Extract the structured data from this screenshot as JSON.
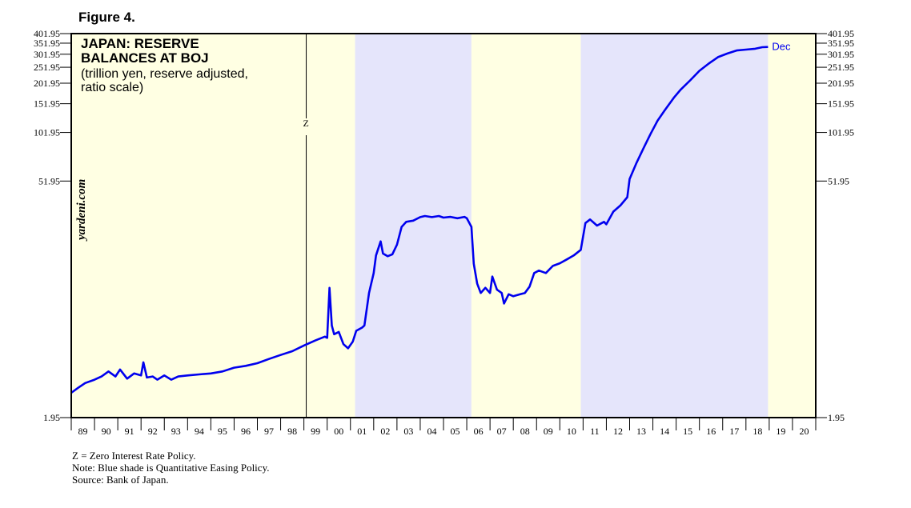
{
  "figure_label": "Figure 4.",
  "watermark": "yardeni.com",
  "notes": [
    "Z = Zero Interest Rate Policy.",
    "Note: Blue shade is Quantitative Easing Policy.",
    "Source: Bank of Japan."
  ],
  "colors": {
    "line": "#0000ee",
    "zirp": "#ffffe3",
    "qe": "#e5e5fb",
    "frame": "#000000"
  },
  "chart_data": {
    "type": "line",
    "title": "JAPAN: RESERVE BALANCES AT BOJ",
    "subtitle": "(trillion yen, reserve adjusted, ratio scale)",
    "y_scale": "log",
    "ylim": [
      1.95,
      401.95
    ],
    "yticks": [
      1.95,
      51.95,
      101.95,
      151.95,
      201.95,
      251.95,
      301.95,
      351.95,
      401.95
    ],
    "ytick_labels": [
      "1.95",
      "51.95",
      "101.95",
      "151.95",
      "201.95",
      "251.95",
      "301.95",
      "351.95",
      "401.95"
    ],
    "xlim": [
      1989.0,
      2021.0
    ],
    "x_tick_labels": [
      "89",
      "90",
      "91",
      "92",
      "93",
      "94",
      "95",
      "96",
      "97",
      "98",
      "99",
      "00",
      "01",
      "02",
      "03",
      "04",
      "05",
      "06",
      "07",
      "08",
      "09",
      "10",
      "11",
      "12",
      "13",
      "14",
      "15",
      "16",
      "17",
      "18",
      "19",
      "20"
    ],
    "annotations": [
      {
        "label": "Z",
        "x": 1999.1,
        "kind": "vertical-line"
      },
      {
        "label": "Dec",
        "x": 2018.95,
        "kind": "end-label"
      }
    ],
    "shaded_regions": [
      {
        "start": 1999.1,
        "end": 2001.2,
        "type": "zirp"
      },
      {
        "start": 2001.2,
        "end": 2006.2,
        "type": "qe"
      },
      {
        "start": 2006.2,
        "end": 2010.9,
        "type": "zirp"
      },
      {
        "start": 2010.9,
        "end": 2018.95,
        "type": "qe"
      },
      {
        "start": 2018.95,
        "end": 2021.0,
        "type": "zirp"
      },
      {
        "start": 1989.0,
        "end": 1999.1,
        "type": "zirp"
      }
    ],
    "series": [
      {
        "values": [
          [
            1989.0,
            2.75
          ],
          [
            1989.3,
            2.95
          ],
          [
            1989.6,
            3.15
          ],
          [
            1990.0,
            3.3
          ],
          [
            1990.3,
            3.45
          ],
          [
            1990.6,
            3.7
          ],
          [
            1990.9,
            3.45
          ],
          [
            1991.1,
            3.8
          ],
          [
            1991.4,
            3.35
          ],
          [
            1991.7,
            3.6
          ],
          [
            1992.0,
            3.5
          ],
          [
            1992.1,
            4.2
          ],
          [
            1992.25,
            3.4
          ],
          [
            1992.5,
            3.45
          ],
          [
            1992.7,
            3.3
          ],
          [
            1993.0,
            3.5
          ],
          [
            1993.3,
            3.3
          ],
          [
            1993.6,
            3.45
          ],
          [
            1994.0,
            3.5
          ],
          [
            1994.5,
            3.55
          ],
          [
            1995.0,
            3.6
          ],
          [
            1995.5,
            3.7
          ],
          [
            1996.0,
            3.9
          ],
          [
            1996.5,
            4.0
          ],
          [
            1997.0,
            4.15
          ],
          [
            1997.5,
            4.4
          ],
          [
            1998.0,
            4.65
          ],
          [
            1998.5,
            4.9
          ],
          [
            1999.0,
            5.3
          ],
          [
            1999.5,
            5.7
          ],
          [
            1999.9,
            6.0
          ],
          [
            2000.0,
            5.9
          ],
          [
            2000.1,
            11.8
          ],
          [
            2000.2,
            7.0
          ],
          [
            2000.3,
            6.2
          ],
          [
            2000.5,
            6.4
          ],
          [
            2000.7,
            5.4
          ],
          [
            2000.9,
            5.1
          ],
          [
            2001.1,
            5.6
          ],
          [
            2001.25,
            6.5
          ],
          [
            2001.5,
            6.8
          ],
          [
            2001.6,
            7.0
          ],
          [
            2001.8,
            11.0
          ],
          [
            2002.0,
            14.5
          ],
          [
            2002.1,
            18.5
          ],
          [
            2002.3,
            22.5
          ],
          [
            2002.4,
            19.0
          ],
          [
            2002.6,
            18.3
          ],
          [
            2002.8,
            18.8
          ],
          [
            2003.0,
            21.5
          ],
          [
            2003.2,
            27.5
          ],
          [
            2003.4,
            29.5
          ],
          [
            2003.7,
            30.0
          ],
          [
            2004.0,
            31.5
          ],
          [
            2004.2,
            32.0
          ],
          [
            2004.5,
            31.5
          ],
          [
            2004.8,
            32.0
          ],
          [
            2005.0,
            31.3
          ],
          [
            2005.3,
            31.6
          ],
          [
            2005.6,
            31.0
          ],
          [
            2005.9,
            31.6
          ],
          [
            2006.0,
            31.0
          ],
          [
            2006.2,
            27.5
          ],
          [
            2006.3,
            16.5
          ],
          [
            2006.45,
            12.5
          ],
          [
            2006.6,
            11.0
          ],
          [
            2006.8,
            11.8
          ],
          [
            2007.0,
            11.0
          ],
          [
            2007.1,
            13.8
          ],
          [
            2007.3,
            11.5
          ],
          [
            2007.5,
            11.0
          ],
          [
            2007.6,
            9.5
          ],
          [
            2007.8,
            10.8
          ],
          [
            2008.0,
            10.5
          ],
          [
            2008.3,
            10.8
          ],
          [
            2008.5,
            11.0
          ],
          [
            2008.7,
            12.0
          ],
          [
            2008.9,
            14.5
          ],
          [
            2009.1,
            15.0
          ],
          [
            2009.4,
            14.5
          ],
          [
            2009.7,
            16.0
          ],
          [
            2010.0,
            16.6
          ],
          [
            2010.3,
            17.5
          ],
          [
            2010.6,
            18.5
          ],
          [
            2010.9,
            20.0
          ],
          [
            2011.1,
            29.0
          ],
          [
            2011.3,
            30.5
          ],
          [
            2011.6,
            28.0
          ],
          [
            2011.9,
            29.5
          ],
          [
            2012.0,
            28.5
          ],
          [
            2012.3,
            34.0
          ],
          [
            2012.6,
            37.0
          ],
          [
            2012.9,
            41.5
          ],
          [
            2013.0,
            53.5
          ],
          [
            2013.3,
            67.0
          ],
          [
            2013.6,
            82.0
          ],
          [
            2013.9,
            100.0
          ],
          [
            2014.2,
            120.0
          ],
          [
            2014.5,
            138.0
          ],
          [
            2014.9,
            165.0
          ],
          [
            2015.2,
            185.0
          ],
          [
            2015.6,
            210.0
          ],
          [
            2016.0,
            240.0
          ],
          [
            2016.4,
            265.0
          ],
          [
            2016.8,
            290.0
          ],
          [
            2017.2,
            305.0
          ],
          [
            2017.6,
            318.0
          ],
          [
            2018.0,
            322.0
          ],
          [
            2018.4,
            326.0
          ],
          [
            2018.7,
            333.0
          ],
          [
            2018.95,
            334.0
          ]
        ]
      }
    ]
  }
}
